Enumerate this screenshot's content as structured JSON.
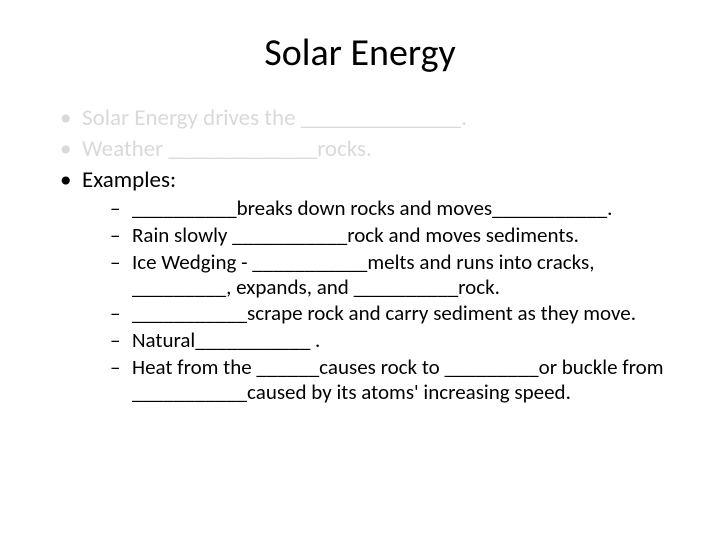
{
  "title": "Solar Energy",
  "bullets": {
    "b1": "Solar Energy drives the ______________.",
    "b2": "Weather _____________rocks.",
    "b3": "Examples:"
  },
  "subs": {
    "s1": "__________breaks down rocks and moves___________.",
    "s2": "Rain slowly ___________rock and moves sediments.",
    "s3": "Ice Wedging - ___________melts and runs into cracks, _________, expands, and __________rock.",
    "s4": "___________scrape rock and carry sediment as they move.",
    "s5": "Natural___________ .",
    "s6": "Heat from the ______causes rock to _________or buckle from ___________caused by its atoms' increasing speed."
  },
  "colors": {
    "faded": "#d9d9d9",
    "text": "#000000",
    "background": "#ffffff"
  },
  "fonts": {
    "title_size": 38,
    "bullet_size": 23,
    "sub_size": 21
  }
}
